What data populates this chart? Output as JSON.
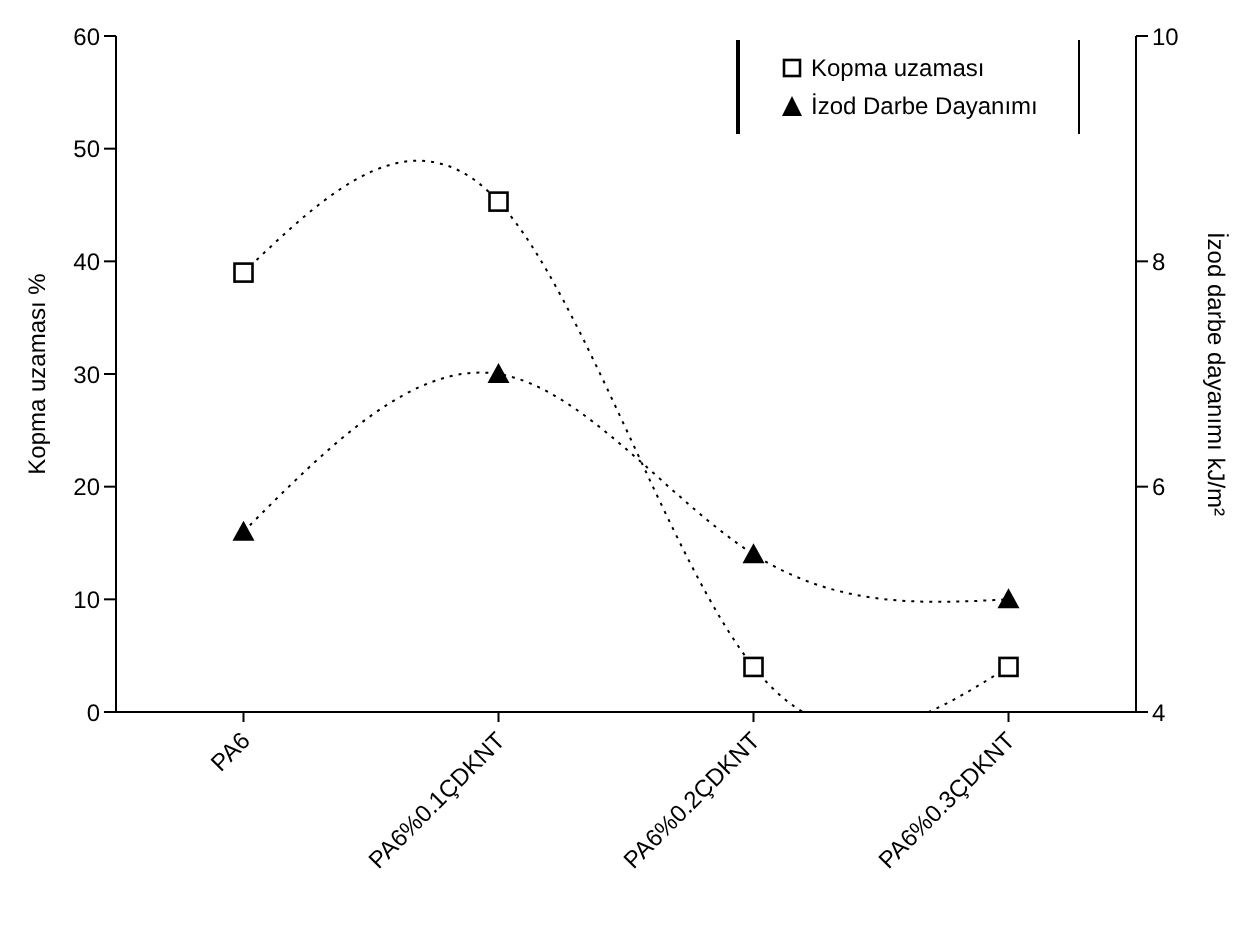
{
  "chart_data": {
    "type": "line",
    "categories": [
      "PA6",
      "PA6%0.1ÇDKNT",
      "PA6%0.2ÇDKNT",
      "PA6%0.3ÇDKNT"
    ],
    "ylabel": "Kopma uzaması %",
    "y2label": "İzod darbe dayanımı kJ/m²",
    "ylim": [
      0,
      60
    ],
    "yticks": [
      0,
      10,
      20,
      30,
      40,
      50,
      60
    ],
    "y2lim": [
      4,
      10
    ],
    "y2ticks": [
      4,
      6,
      8,
      10
    ],
    "series": [
      {
        "name": "Kopma uzaması",
        "color": "#000000",
        "marker": "square",
        "values": [
          39,
          45.3,
          4,
          4
        ]
      },
      {
        "name": "İzod Darbe Dayanımı",
        "color": "#000000",
        "marker": "triangle",
        "axis": "y2",
        "values": [
          5.6,
          7,
          5.4,
          5
        ]
      }
    ],
    "line_style": "dotted",
    "legend": "top right"
  }
}
